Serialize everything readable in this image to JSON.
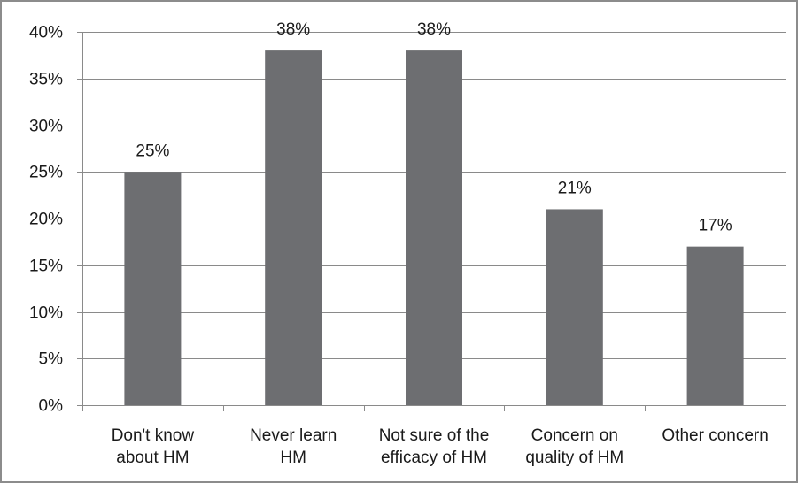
{
  "chart_data": {
    "type": "bar",
    "categories": [
      [
        "Don't know",
        "about HM"
      ],
      [
        "Never learn",
        "HM"
      ],
      [
        "Not sure of the",
        "efficacy of HM"
      ],
      [
        "Concern on",
        "quality of HM"
      ],
      [
        "Other concern"
      ]
    ],
    "values": [
      25,
      38,
      38,
      21,
      17
    ],
    "value_labels": [
      "25%",
      "38%",
      "38%",
      "21%",
      "17%"
    ],
    "ylim": [
      0,
      40
    ],
    "yticks": [
      0,
      5,
      10,
      15,
      20,
      25,
      30,
      35,
      40
    ],
    "ytick_labels": [
      "0%",
      "5%",
      "10%",
      "15%",
      "20%",
      "25%",
      "30%",
      "35%",
      "40%"
    ],
    "grid": true,
    "legend": "none",
    "colors": {
      "bar": "#6d6e71",
      "grid": "#8a8a8a",
      "axis": "#8a8a8a"
    }
  }
}
